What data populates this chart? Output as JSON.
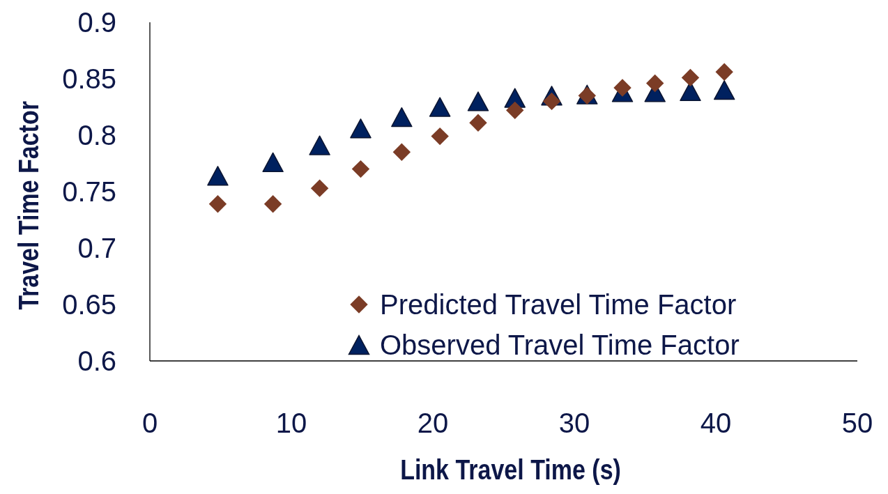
{
  "chart_data": {
    "type": "scatter",
    "xlabel": "Link Travel Time (s)",
    "ylabel": "Travel Time Factor",
    "x": [
      4.8,
      8.7,
      12,
      14.9,
      17.8,
      20.5,
      23.2,
      25.8,
      28.4,
      30.9,
      33.4,
      35.7,
      38.2,
      40.6
    ],
    "series": [
      {
        "name": "Predicted Travel Time Factor",
        "color": "#7b3c26",
        "marker": "diamond",
        "values": [
          0.739,
          0.739,
          0.753,
          0.77,
          0.785,
          0.799,
          0.811,
          0.822,
          0.83,
          0.835,
          0.842,
          0.846,
          0.851,
          0.856
        ]
      },
      {
        "name": "Observed Travel Time Factor",
        "color": "#00215f",
        "marker": "triangle",
        "values": [
          0.764,
          0.776,
          0.791,
          0.806,
          0.816,
          0.825,
          0.83,
          0.833,
          0.835,
          0.836,
          0.838,
          0.838,
          0.839,
          0.84
        ]
      }
    ],
    "xlim": [
      0,
      50
    ],
    "xticks": [
      0,
      10,
      20,
      30,
      40,
      50
    ],
    "ylim": [
      0.6,
      0.9
    ],
    "yticks": [
      0.6,
      0.65,
      0.7,
      0.75,
      0.8,
      0.85,
      0.9
    ],
    "grid": false,
    "legend": "bottom right"
  }
}
